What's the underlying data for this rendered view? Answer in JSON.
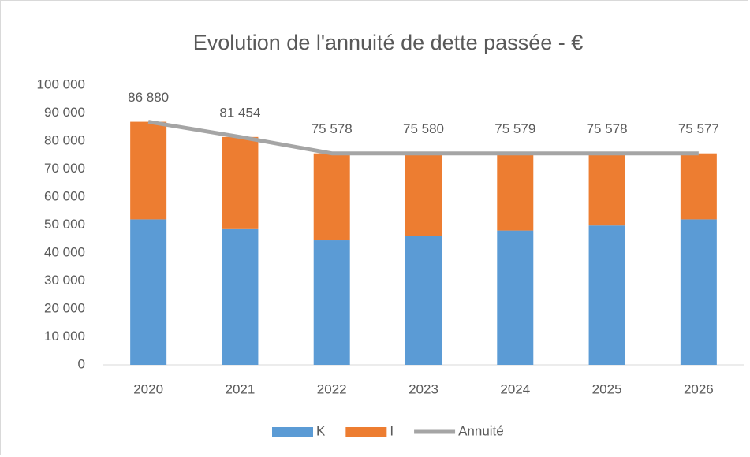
{
  "chart_data": {
    "type": "bar",
    "title": "Evolution de l'annuité de dette passée - €",
    "categories": [
      "2020",
      "2021",
      "2022",
      "2023",
      "2024",
      "2025",
      "2026"
    ],
    "series": [
      {
        "name": "K",
        "color": "#5b9bd5",
        "values": [
          52000,
          48500,
          44500,
          46000,
          48000,
          49800,
          52000
        ]
      },
      {
        "name": "I",
        "color": "#ed7d31",
        "values": [
          34880,
          32954,
          31078,
          29580,
          27579,
          25778,
          23577
        ]
      },
      {
        "name": "Annuité",
        "type": "line",
        "color": "#a5a5a5",
        "values": [
          86880,
          81454,
          75578,
          75580,
          75579,
          75578,
          75577
        ],
        "value_labels": [
          "86 880",
          "81 454",
          "75 578",
          "75 580",
          "75 579",
          "75 578",
          "75 577"
        ]
      }
    ],
    "stacked": true,
    "ylim": [
      0,
      100000
    ],
    "yticks": [
      0,
      {
        "value": 10000,
        "label": "10 000"
      },
      {
        "value": 20000,
        "label": "20 000"
      },
      {
        "value": 30000,
        "label": "30 000"
      },
      {
        "value": 40000,
        "label": "40 000"
      },
      {
        "value": 50000,
        "label": "50 000"
      },
      {
        "value": 60000,
        "label": "60 000"
      },
      {
        "value": 70000,
        "label": "70 000"
      },
      {
        "value": 80000,
        "label": "80 000"
      },
      {
        "value": 90000,
        "label": "90 000"
      },
      {
        "value": 100000,
        "label": "100 000"
      }
    ],
    "grid": false,
    "legend": "bottom"
  }
}
